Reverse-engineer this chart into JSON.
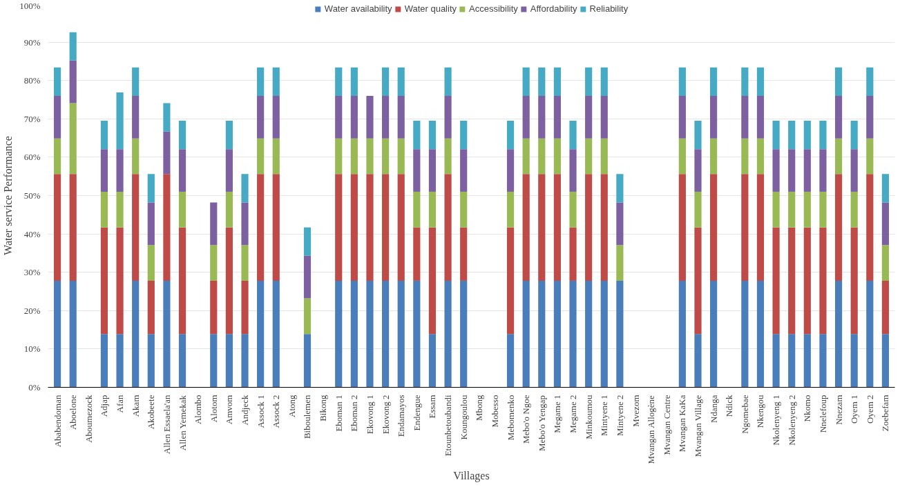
{
  "chart_data": {
    "type": "bar",
    "stacked": true,
    "xlabel": "Villages",
    "ylabel": "Water service Performance",
    "categories": [
      "Ababendoman",
      "Aboelone",
      "Aboumezock",
      "Adjap",
      "Afan",
      "Akam",
      "Akobeete",
      "Allen Essaela'an",
      "Allen Yemekak",
      "Alombo",
      "Alotom",
      "Amvom",
      "Andjeck",
      "Assock 1",
      "Assock 2",
      "Atong",
      "Biboulemen",
      "Bikong",
      "Eboman 1",
      "Eboman 2",
      "Ekovong 1",
      "Ekovong 2",
      "Endamayos",
      "Endengue",
      "Essam",
      "Etounbetoubandi",
      "Koungoulou",
      "Mbong",
      "Mobesso",
      "Mebomenko",
      "Mebo'o Ngoe",
      "Mebo'o Yengap",
      "Megame 1",
      "Megame 2",
      "Minkoumou",
      "Mintyene 1",
      "Mintyene 2",
      "Mvezom",
      "Mvangan Allogène",
      "Mvangan Centre",
      "Mvangan KaKa",
      "Mvangan Village",
      "Ndanga",
      "Ndick",
      "Ngomebae",
      "Nkengou",
      "Nkolenyeng 1",
      "Nkolenyeng 2",
      "Nkomo",
      "Nnelefoup",
      "Nnezam",
      "Oyem 1",
      "Oyem 2",
      "Zoebefam"
    ],
    "series": [
      {
        "name": "Water availability",
        "color": "#4a7ebb",
        "values": [
          27.8,
          27.8,
          0,
          13.9,
          13.9,
          27.8,
          13.9,
          27.8,
          13.9,
          0,
          13.9,
          13.9,
          13.9,
          27.8,
          27.8,
          0,
          13.9,
          0,
          27.8,
          27.8,
          27.8,
          27.8,
          27.8,
          27.8,
          13.9,
          27.8,
          27.8,
          0,
          0,
          13.9,
          27.8,
          27.8,
          27.8,
          27.8,
          27.8,
          27.8,
          27.8,
          0,
          0,
          0,
          27.8,
          13.9,
          27.8,
          0,
          27.8,
          27.8,
          13.9,
          13.9,
          13.9,
          13.9,
          27.8,
          13.9,
          27.8,
          13.9
        ]
      },
      {
        "name": "Water quality",
        "color": "#be4b48",
        "values": [
          27.8,
          27.8,
          0,
          27.8,
          27.8,
          27.8,
          13.9,
          27.8,
          27.8,
          0,
          13.9,
          27.8,
          13.9,
          27.8,
          27.8,
          0,
          0,
          0,
          27.8,
          27.8,
          27.8,
          27.8,
          27.8,
          13.9,
          27.8,
          27.8,
          13.9,
          0,
          0,
          27.8,
          27.8,
          27.8,
          27.8,
          13.9,
          27.8,
          27.8,
          0,
          0,
          0,
          0,
          27.8,
          27.8,
          27.8,
          0,
          27.8,
          27.8,
          27.8,
          27.8,
          27.8,
          27.8,
          27.8,
          27.8,
          27.8,
          13.9
        ]
      },
      {
        "name": "Accessibility",
        "color": "#98b954",
        "values": [
          9.3,
          18.5,
          0,
          9.3,
          9.3,
          9.3,
          9.3,
          0,
          9.3,
          0,
          9.3,
          9.3,
          9.3,
          9.3,
          9.3,
          0,
          9.3,
          0,
          9.3,
          9.3,
          9.3,
          9.3,
          9.3,
          9.3,
          9.3,
          9.3,
          9.3,
          0,
          0,
          9.3,
          9.3,
          9.3,
          9.3,
          9.3,
          9.3,
          9.3,
          9.3,
          0,
          0,
          0,
          9.3,
          9.3,
          9.3,
          0,
          9.3,
          9.3,
          9.3,
          9.3,
          9.3,
          9.3,
          9.3,
          9.3,
          9.3,
          9.3
        ]
      },
      {
        "name": "Affordability",
        "color": "#7d60a0",
        "values": [
          11.1,
          11.1,
          0,
          11.1,
          11.1,
          11.1,
          11.1,
          11.1,
          11.1,
          0,
          11.1,
          11.1,
          11.1,
          11.1,
          11.1,
          0,
          11.1,
          0,
          11.1,
          11.1,
          11.1,
          11.1,
          11.1,
          11.1,
          11.1,
          11.1,
          11.1,
          0,
          0,
          11.1,
          11.1,
          11.1,
          11.1,
          11.1,
          11.1,
          11.1,
          11.1,
          0,
          0,
          0,
          11.1,
          11.1,
          11.1,
          0,
          11.1,
          11.1,
          11.1,
          11.1,
          11.1,
          11.1,
          11.1,
          11.1,
          11.1,
          11.1
        ]
      },
      {
        "name": "Reliability",
        "color": "#46aac5",
        "values": [
          7.4,
          7.4,
          0,
          7.4,
          14.8,
          7.4,
          7.4,
          7.4,
          7.4,
          0,
          0,
          7.4,
          7.4,
          7.4,
          7.4,
          0,
          7.4,
          0,
          7.4,
          7.4,
          0,
          7.4,
          7.4,
          7.4,
          7.4,
          7.4,
          7.4,
          0,
          0,
          7.4,
          7.4,
          7.4,
          7.4,
          7.4,
          7.4,
          7.4,
          7.4,
          0,
          0,
          0,
          7.4,
          7.4,
          7.4,
          0,
          7.4,
          7.4,
          7.4,
          7.4,
          7.4,
          7.4,
          7.4,
          7.4,
          7.4,
          7.4
        ]
      }
    ],
    "ylim": [
      0,
      100
    ],
    "yticks": [
      {
        "value": 0,
        "label": "0%"
      },
      {
        "value": 10,
        "label": "10%"
      },
      {
        "value": 20,
        "label": "20%"
      },
      {
        "value": 30,
        "label": "30%"
      },
      {
        "value": 40,
        "label": "40%"
      },
      {
        "value": 50,
        "label": "50%"
      },
      {
        "value": 60,
        "label": "60%"
      },
      {
        "value": 70,
        "label": "70%"
      },
      {
        "value": 80,
        "label": "80%"
      },
      {
        "value": 90,
        "label": "90%"
      },
      {
        "value": 100,
        "label": "100%"
      }
    ],
    "grid": "y",
    "legend": "top"
  }
}
